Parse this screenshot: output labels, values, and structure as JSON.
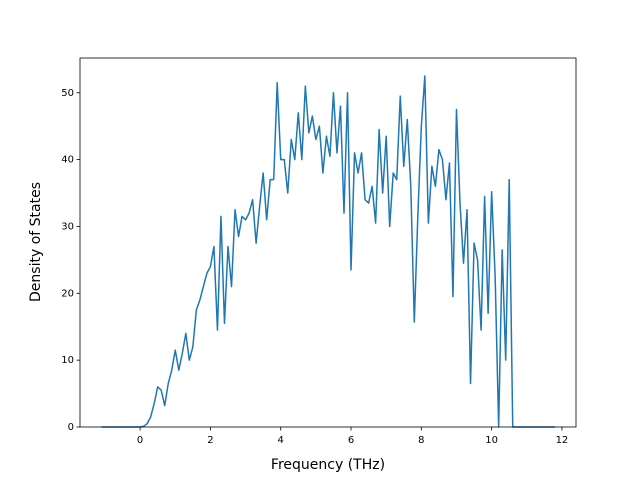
{
  "chart_data": {
    "type": "line",
    "x_label": "Frequency (THz)",
    "y_label": "Density of States",
    "x": [
      -1.1,
      -1.0,
      -0.9,
      -0.8,
      -0.7,
      -0.6,
      -0.5,
      -0.4,
      -0.3,
      -0.2,
      -0.1,
      0.0,
      0.1,
      0.2,
      0.3,
      0.4,
      0.5,
      0.6,
      0.7,
      0.8,
      0.9,
      1.0,
      1.1,
      1.2,
      1.3,
      1.4,
      1.5,
      1.6,
      1.7,
      1.8,
      1.9,
      2.0,
      2.1,
      2.2,
      2.3,
      2.4,
      2.5,
      2.6,
      2.7,
      2.8,
      2.9,
      3.0,
      3.1,
      3.2,
      3.3,
      3.4,
      3.5,
      3.6,
      3.7,
      3.8,
      3.9,
      4.0,
      4.1,
      4.2,
      4.3,
      4.4,
      4.5,
      4.6,
      4.7,
      4.8,
      4.9,
      5.0,
      5.1,
      5.2,
      5.3,
      5.4,
      5.5,
      5.6,
      5.7,
      5.8,
      5.9,
      6.0,
      6.1,
      6.2,
      6.3,
      6.4,
      6.5,
      6.6,
      6.7,
      6.8,
      6.9,
      7.0,
      7.1,
      7.2,
      7.3,
      7.4,
      7.5,
      7.6,
      7.7,
      7.8,
      7.9,
      8.0,
      8.1,
      8.2,
      8.3,
      8.4,
      8.5,
      8.6,
      8.7,
      8.8,
      8.9,
      9.0,
      9.1,
      9.2,
      9.3,
      9.4,
      9.5,
      9.6,
      9.7,
      9.8,
      9.9,
      10.0,
      10.1,
      10.2,
      10.3,
      10.4,
      10.5,
      10.6,
      10.7,
      10.8,
      10.9,
      11.0,
      11.1,
      11.2,
      11.3,
      11.4,
      11.5,
      11.6,
      11.7,
      11.8
    ],
    "series": [
      {
        "color": "#1f77b4",
        "values": [
          0,
          0,
          0,
          0,
          0,
          0,
          0,
          0,
          0,
          0,
          0,
          0,
          0.1,
          0.5,
          1.5,
          3.5,
          6,
          5.5,
          3.2,
          6.5,
          8.5,
          11.5,
          8.5,
          11,
          14,
          10,
          12,
          17.5,
          19,
          21,
          23,
          24,
          27,
          14.5,
          31.5,
          15.5,
          27,
          21,
          32.5,
          28.5,
          31.5,
          31,
          32,
          34,
          27.5,
          33,
          38,
          31,
          37,
          37,
          51.5,
          40,
          40,
          35,
          43,
          40,
          47,
          40,
          51,
          44,
          46.5,
          43,
          45,
          38,
          43.5,
          40.5,
          50,
          41,
          48,
          32,
          50,
          23.5,
          41,
          38,
          41,
          34,
          33.5,
          36,
          30.5,
          44.5,
          35,
          43.5,
          30,
          38,
          37,
          49.5,
          39,
          46,
          36,
          15.7,
          31.5,
          45,
          52.5,
          30.5,
          39,
          36,
          41.5,
          40,
          34,
          39.5,
          19.5,
          47.5,
          33.5,
          24.5,
          32.5,
          6.5,
          27.5,
          25,
          14.5,
          34.5,
          17,
          35.2,
          22.5,
          0,
          26.5,
          10,
          37,
          0,
          0,
          0,
          0,
          0,
          0,
          0,
          0,
          0,
          0,
          0,
          0,
          0
        ]
      }
    ],
    "xlim": [
      -1.71,
      12.4
    ],
    "ylim": [
      0,
      55.2
    ],
    "xticks": [
      0,
      2,
      4,
      6,
      8,
      10,
      12
    ],
    "yticks": [
      0,
      10,
      20,
      30,
      40,
      50
    ]
  }
}
